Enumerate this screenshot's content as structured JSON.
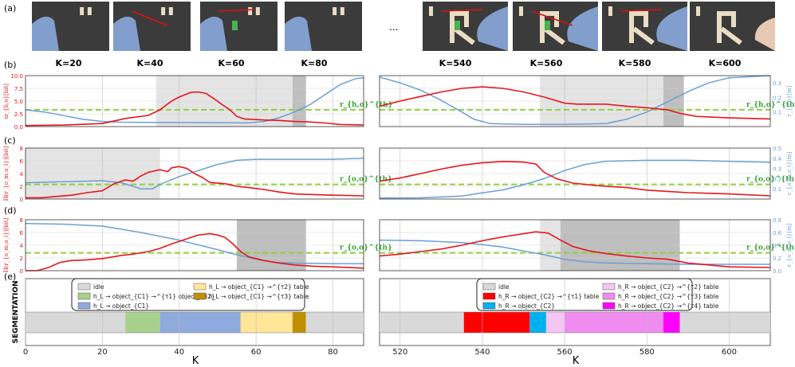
{
  "figure": {
    "panel_labels": [
      "(a)",
      "(b)",
      "(c)",
      "(d)",
      "(e)"
    ],
    "ellipsis": "...",
    "frame_labels": [
      "K=20",
      "K=40",
      "K=60",
      "K=80",
      "K=540",
      "K=560",
      "K=580",
      "K=600"
    ],
    "segmentation_ylabel": "SEGMENTATION",
    "xlabel": "K",
    "left_xticks": [
      "0",
      "20",
      "40",
      "60",
      "80"
    ],
    "right_xticks": [
      "520",
      "540",
      "560",
      "580",
      "600"
    ],
    "left_xrange": [
      0,
      88
    ],
    "right_xrange": [
      515,
      610
    ]
  },
  "colors": {
    "red": "#e8141c",
    "blue": "#6a9fd6",
    "threshold": "#8fcf3c",
    "shade_light": "#d9d9d9",
    "shade_dark": "#a9a9a9",
    "idle": "#d9d9d9",
    "hL_C1_B2": "#a8d08d",
    "hL_C1": "#8faadc",
    "hL_C1_table_yellow": "#ffe699",
    "hL_C1_table_gold": "#bf9000",
    "hR_C2_table_red": "#ff0000",
    "hR_C2": "#00b0f0",
    "hR_C2_table_lpink": "#f4c6f4",
    "hR_C2_table_pink": "#f08cf0",
    "hR_C2_table_mag": "#ff00ff"
  },
  "chart_data": [
    {
      "id": "b-left",
      "type": "line",
      "x_range": [
        0,
        88
      ],
      "ylabel": "ϖ_{h,o}[bit]",
      "ylim": [
        0,
        10
      ],
      "yticks": [
        "0.0",
        "2.5",
        "5.0",
        "7.5",
        "10.0"
      ],
      "y2lim": [
        0,
        0.35
      ],
      "y2ticks": [],
      "threshold": 3.3,
      "threshold_label": "r_{h,o}^{th}",
      "shaded": [
        {
          "x0": 34,
          "x1": 69.5,
          "tone": "light"
        },
        {
          "x0": 69.5,
          "x1": 73,
          "tone": "dark"
        }
      ],
      "red": [
        [
          0,
          0.2
        ],
        [
          10,
          0.3
        ],
        [
          20,
          0.6
        ],
        [
          26,
          1.6
        ],
        [
          32,
          2.2
        ],
        [
          35,
          3.3
        ],
        [
          38,
          5.0
        ],
        [
          40,
          5.8
        ],
        [
          43,
          6.7
        ],
        [
          45,
          6.8
        ],
        [
          47,
          6.5
        ],
        [
          49,
          5.5
        ],
        [
          51,
          4.4
        ],
        [
          53,
          3.4
        ],
        [
          55,
          2.0
        ],
        [
          57,
          1.5
        ],
        [
          62,
          1.3
        ],
        [
          66,
          1.2
        ],
        [
          70,
          1.0
        ],
        [
          74,
          0.9
        ],
        [
          78,
          0.7
        ],
        [
          82,
          0.4
        ],
        [
          88,
          0.3
        ]
      ],
      "blue": [
        [
          0,
          0.115
        ],
        [
          5,
          0.1
        ],
        [
          10,
          0.075
        ],
        [
          15,
          0.05
        ],
        [
          20,
          0.035
        ],
        [
          25,
          0.03
        ],
        [
          35,
          0.028
        ],
        [
          50,
          0.027
        ],
        [
          58,
          0.025
        ],
        [
          62,
          0.035
        ],
        [
          66,
          0.06
        ],
        [
          70,
          0.1
        ],
        [
          74,
          0.15
        ],
        [
          78,
          0.22
        ],
        [
          82,
          0.29
        ],
        [
          86,
          0.33
        ],
        [
          88,
          0.335
        ]
      ]
    },
    {
      "id": "b-right",
      "type": "line",
      "x_range": [
        515,
        610
      ],
      "ylabel": "",
      "ylim": [
        0,
        10
      ],
      "yticks": [],
      "y2lim": [
        0,
        0.35
      ],
      "y2ticks": [
        "0.1",
        "0.2",
        "0.3"
      ],
      "y2label": "r_{h,o}[m]",
      "threshold": 3.3,
      "threshold_label": "r_{h,o}^{th}",
      "shaded": [
        {
          "x0": 554,
          "x1": 584,
          "tone": "light"
        },
        {
          "x0": 584,
          "x1": 589,
          "tone": "dark"
        }
      ],
      "red": [
        [
          515,
          4.0
        ],
        [
          520,
          5.0
        ],
        [
          525,
          5.9
        ],
        [
          530,
          6.8
        ],
        [
          535,
          7.5
        ],
        [
          540,
          7.8
        ],
        [
          545,
          7.5
        ],
        [
          550,
          6.8
        ],
        [
          555,
          5.8
        ],
        [
          560,
          4.6
        ],
        [
          563,
          4.4
        ],
        [
          570,
          4.4
        ],
        [
          575,
          4.0
        ],
        [
          580,
          3.7
        ],
        [
          585,
          3.3
        ],
        [
          588,
          2.6
        ],
        [
          592,
          2.0
        ],
        [
          600,
          1.7
        ],
        [
          610,
          1.5
        ]
      ],
      "blue": [
        [
          515,
          0.34
        ],
        [
          520,
          0.3
        ],
        [
          525,
          0.25
        ],
        [
          530,
          0.18
        ],
        [
          535,
          0.1
        ],
        [
          538,
          0.05
        ],
        [
          542,
          0.02
        ],
        [
          550,
          0.015
        ],
        [
          560,
          0.015
        ],
        [
          570,
          0.02
        ],
        [
          575,
          0.05
        ],
        [
          580,
          0.1
        ],
        [
          585,
          0.17
        ],
        [
          590,
          0.24
        ],
        [
          595,
          0.3
        ],
        [
          600,
          0.335
        ],
        [
          610,
          0.35
        ]
      ]
    },
    {
      "id": "c-left",
      "type": "line",
      "x_range": [
        0,
        88
      ],
      "ylabel": "H(r_{o_m,o_l})[bit]",
      "ylim": [
        0,
        8
      ],
      "yticks": [
        "0",
        "2",
        "4",
        "6",
        "8"
      ],
      "y2lim": [
        0,
        0.5
      ],
      "y2ticks": [],
      "threshold": 2.3,
      "threshold_label": "r_{o,o}^{th}",
      "shaded": [
        {
          "x0": 0,
          "x1": 35,
          "tone": "light"
        }
      ],
      "red": [
        [
          0,
          0.2
        ],
        [
          4,
          0.2
        ],
        [
          8,
          0.4
        ],
        [
          12,
          0.6
        ],
        [
          16,
          1.0
        ],
        [
          20,
          1.3
        ],
        [
          23,
          2.4
        ],
        [
          26,
          3.0
        ],
        [
          28,
          2.8
        ],
        [
          30,
          3.6
        ],
        [
          32,
          4.2
        ],
        [
          35,
          4.6
        ],
        [
          37,
          4.3
        ],
        [
          38,
          4.9
        ],
        [
          40,
          5.1
        ],
        [
          42,
          4.8
        ],
        [
          44,
          4.0
        ],
        [
          46,
          3.4
        ],
        [
          48,
          2.6
        ],
        [
          52,
          2.4
        ],
        [
          55,
          2.0
        ],
        [
          58,
          1.8
        ],
        [
          62,
          1.5
        ],
        [
          66,
          1.1
        ],
        [
          70,
          0.8
        ],
        [
          75,
          0.7
        ],
        [
          80,
          0.6
        ],
        [
          88,
          0.5
        ]
      ],
      "blue": [
        [
          0,
          0.16
        ],
        [
          10,
          0.17
        ],
        [
          20,
          0.18
        ],
        [
          25,
          0.16
        ],
        [
          30,
          0.1
        ],
        [
          33,
          0.1
        ],
        [
          36,
          0.16
        ],
        [
          40,
          0.22
        ],
        [
          45,
          0.28
        ],
        [
          50,
          0.34
        ],
        [
          55,
          0.38
        ],
        [
          60,
          0.39
        ],
        [
          70,
          0.39
        ],
        [
          80,
          0.39
        ],
        [
          88,
          0.4
        ]
      ]
    },
    {
      "id": "c-right",
      "type": "line",
      "x_range": [
        515,
        610
      ],
      "ylabel": "",
      "ylim": [
        0,
        8
      ],
      "yticks": [],
      "y2lim": [
        0,
        0.5
      ],
      "y2ticks": [
        "0.1",
        "0.2",
        "0.3",
        "0.4",
        "0.5"
      ],
      "y2label": "r_{o_m,o_l}[m]",
      "threshold": 2.3,
      "threshold_label": "r_{o,o}^{th}",
      "shaded": [],
      "red": [
        [
          515,
          2.8
        ],
        [
          520,
          3.3
        ],
        [
          525,
          4.0
        ],
        [
          530,
          4.7
        ],
        [
          535,
          5.3
        ],
        [
          540,
          5.7
        ],
        [
          545,
          5.9
        ],
        [
          550,
          5.8
        ],
        [
          553,
          5.5
        ],
        [
          555,
          4.2
        ],
        [
          558,
          3.2
        ],
        [
          562,
          2.5
        ],
        [
          568,
          2.1
        ],
        [
          575,
          1.8
        ],
        [
          580,
          1.4
        ],
        [
          585,
          1.2
        ],
        [
          590,
          1.0
        ],
        [
          600,
          0.8
        ],
        [
          610,
          0.5
        ]
      ],
      "blue": [
        [
          515,
          0.01
        ],
        [
          525,
          0.012
        ],
        [
          535,
          0.03
        ],
        [
          540,
          0.06
        ],
        [
          545,
          0.09
        ],
        [
          550,
          0.14
        ],
        [
          555,
          0.2
        ],
        [
          560,
          0.28
        ],
        [
          565,
          0.34
        ],
        [
          570,
          0.37
        ],
        [
          580,
          0.38
        ],
        [
          590,
          0.38
        ],
        [
          600,
          0.37
        ],
        [
          610,
          0.36
        ]
      ]
    },
    {
      "id": "d-left",
      "type": "line",
      "x_range": [
        0,
        88
      ],
      "ylabel": "H(r_{o_m,o_l})[bit]",
      "ylim": [
        0,
        8
      ],
      "yticks": [
        "0",
        "2",
        "4",
        "6",
        "8"
      ],
      "y2lim": [
        0,
        0.8
      ],
      "y2ticks": [],
      "threshold": 2.8,
      "threshold_label": "r_{o,o}^{th}",
      "shaded": [
        {
          "x0": 55,
          "x1": 73,
          "tone": "dark"
        }
      ],
      "red": [
        [
          0,
          0
        ],
        [
          3,
          0
        ],
        [
          6,
          0.5
        ],
        [
          9,
          1.3
        ],
        [
          12,
          1.6
        ],
        [
          16,
          1.7
        ],
        [
          20,
          1.9
        ],
        [
          25,
          2.4
        ],
        [
          28,
          2.6
        ],
        [
          32,
          3.0
        ],
        [
          35,
          3.5
        ],
        [
          38,
          4.2
        ],
        [
          42,
          5.0
        ],
        [
          45,
          5.6
        ],
        [
          48,
          5.8
        ],
        [
          50,
          5.6
        ],
        [
          52,
          5.2
        ],
        [
          54,
          4.2
        ],
        [
          56,
          3.0
        ],
        [
          58,
          2.2
        ],
        [
          62,
          1.6
        ],
        [
          66,
          1.2
        ],
        [
          70,
          0.9
        ],
        [
          75,
          0.7
        ],
        [
          80,
          0.6
        ],
        [
          88,
          0.4
        ]
      ],
      "blue": [
        [
          0,
          0.74
        ],
        [
          10,
          0.73
        ],
        [
          20,
          0.7
        ],
        [
          30,
          0.6
        ],
        [
          40,
          0.48
        ],
        [
          50,
          0.33
        ],
        [
          55,
          0.25
        ],
        [
          60,
          0.18
        ],
        [
          65,
          0.13
        ],
        [
          70,
          0.12
        ],
        [
          80,
          0.11
        ],
        [
          88,
          0.11
        ]
      ]
    },
    {
      "id": "d-right",
      "type": "line",
      "x_range": [
        515,
        610
      ],
      "ylabel": "",
      "ylim": [
        0,
        8
      ],
      "yticks": [],
      "y2lim": [
        0,
        0.8
      ],
      "y2ticks": [
        "0.0",
        "0.2",
        "0.4",
        "0.6",
        "0.8"
      ],
      "y2label": "r_{o_m,o_l}[m]",
      "threshold": 2.8,
      "threshold_label": "r_{o,o}^{th}",
      "shaded": [
        {
          "x0": 554,
          "x1": 559,
          "tone": "light"
        },
        {
          "x0": 559,
          "x1": 588,
          "tone": "dark"
        }
      ],
      "red": [
        [
          515,
          2.3
        ],
        [
          520,
          2.6
        ],
        [
          525,
          3.0
        ],
        [
          530,
          3.4
        ],
        [
          535,
          4.0
        ],
        [
          540,
          4.7
        ],
        [
          545,
          5.3
        ],
        [
          550,
          5.8
        ],
        [
          553,
          6.1
        ],
        [
          556,
          5.9
        ],
        [
          559,
          4.8
        ],
        [
          562,
          3.8
        ],
        [
          566,
          3.1
        ],
        [
          570,
          2.7
        ],
        [
          575,
          2.3
        ],
        [
          580,
          2.0
        ],
        [
          585,
          1.8
        ],
        [
          590,
          1.2
        ],
        [
          600,
          0.6
        ],
        [
          610,
          0.5
        ]
      ],
      "blue": [
        [
          515,
          0.48
        ],
        [
          525,
          0.47
        ],
        [
          535,
          0.44
        ],
        [
          540,
          0.41
        ],
        [
          545,
          0.37
        ],
        [
          550,
          0.31
        ],
        [
          555,
          0.25
        ],
        [
          560,
          0.18
        ],
        [
          565,
          0.14
        ],
        [
          570,
          0.12
        ],
        [
          580,
          0.11
        ],
        [
          590,
          0.1
        ],
        [
          600,
          0.1
        ],
        [
          610,
          0.1
        ]
      ]
    },
    {
      "id": "e-left",
      "type": "bar",
      "x_range": [
        0,
        88
      ],
      "segments": [
        {
          "x0": 0,
          "x1": 26,
          "color": "idle"
        },
        {
          "x0": 26,
          "x1": 35,
          "color": "hL_C1_B2"
        },
        {
          "x0": 35,
          "x1": 56,
          "color": "hL_C1"
        },
        {
          "x0": 56,
          "x1": 69.5,
          "color": "hL_C1_table_yellow"
        },
        {
          "x0": 69.5,
          "x1": 73,
          "color": "hL_C1_table_gold"
        },
        {
          "x0": 73,
          "x1": 88,
          "color": "idle"
        }
      ],
      "legend": [
        {
          "label": "idle",
          "color": "idle"
        },
        {
          "label": "h_L → object_{C1} →^{τ1} object_{B2}",
          "color": "hL_C1_B2"
        },
        {
          "label": "h_L → object_{C1}",
          "color": "hL_C1"
        },
        {
          "label": "h_L → object_{C1} →^{τ2} table",
          "color": "hL_C1_table_yellow"
        },
        {
          "label": "h_L → object_{C1} →^{τ3} table",
          "color": "hL_C1_table_gold"
        }
      ]
    },
    {
      "id": "e-right",
      "type": "bar",
      "x_range": [
        515,
        610
      ],
      "segments": [
        {
          "x0": 515,
          "x1": 535.5,
          "color": "idle"
        },
        {
          "x0": 535.5,
          "x1": 551.5,
          "color": "hR_C2_table_red"
        },
        {
          "x0": 551.5,
          "x1": 555.5,
          "color": "hR_C2"
        },
        {
          "x0": 555.5,
          "x1": 560,
          "color": "hR_C2_table_lpink"
        },
        {
          "x0": 560,
          "x1": 584,
          "color": "hR_C2_table_pink"
        },
        {
          "x0": 584,
          "x1": 588,
          "color": "hR_C2_table_mag"
        },
        {
          "x0": 588,
          "x1": 610,
          "color": "idle"
        }
      ],
      "legend": [
        {
          "label": "idle",
          "color": "idle"
        },
        {
          "label": "h_R → object_{C2} →^{τ1} table",
          "color": "hR_C2_table_red"
        },
        {
          "label": "h_R → object_{C2}",
          "color": "hR_C2"
        },
        {
          "label": "h_R → object_{C2} →^{τ2} table",
          "color": "hR_C2_table_lpink"
        },
        {
          "label": "h_R → object_{C2} →^{τ3} table",
          "color": "hR_C2_table_pink"
        },
        {
          "label": "h_R → object_{C2} →^{τ4} table",
          "color": "hR_C2_table_mag"
        }
      ]
    }
  ]
}
